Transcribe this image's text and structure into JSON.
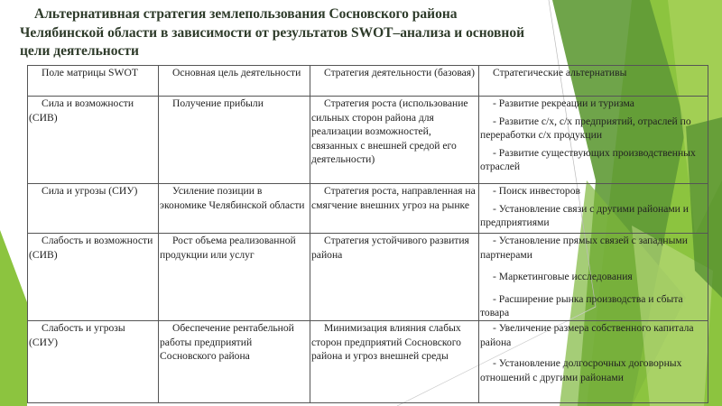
{
  "title": "Альтернативная стратегия землепользования Сосновского района Челябинской области в зависимости от результатов SWOT–анализа и основной цели деятельности",
  "colors": {
    "title": "#2e3b2a",
    "accent_dark_green": "#4f8a2e",
    "accent_light_green": "#8cc43f"
  },
  "table": {
    "headers": [
      "Поле матрицы SWOT",
      "Основная цель деятельности",
      "Стратегия деятельности (базовая)",
      "Стратегические альтернативы"
    ],
    "rows": [
      {
        "field": "Сила и возможности (СИВ)",
        "goal": "Получение прибыли",
        "strategy": "Стратегия роста (использование сильных сторон района для реализации возможностей, связанных с внешней средой его деятельности)",
        "alternatives": [
          "- Развитие рекреации и туризма",
          "- Развитие с/х, с/х предприятий, отраслей по переработки с/х продукции",
          "- Развитие существующих производственных отраслей"
        ]
      },
      {
        "field": "Сила и угрозы (СИУ)",
        "goal": "Усиление позиции в экономике Челябинской области",
        "strategy": "Стратегия роста, направленная на смягчение внешних угроз на рынке",
        "alternatives": [
          "-  Поиск инвесторов",
          "-  Установление связи с другими районами и предприятиями"
        ]
      },
      {
        "field": "Слабость и возможности (СИВ)",
        "goal": "Рост объема реализованной продукции или услуг",
        "strategy": "Стратегия устойчивого развития района",
        "alternatives": [
          "-  Установление прямых связей с западными партнерами",
          "-  Маркетинговые исследования",
          "-  Расширение рынка производства и сбыта товара"
        ]
      },
      {
        "field": "Слабость и угрозы (СИУ)",
        "goal": "Обеспечение рентабельной работы предприятий Сосновского района",
        "strategy": "Минимизация влияния слабых сторон предприятий Сосновского района и угроз внешней среды",
        "alternatives": [
          "- Увеличение размера собственного капитала района",
          "-  Установление долгосрочных договорных отношений с другими районами"
        ]
      }
    ]
  }
}
